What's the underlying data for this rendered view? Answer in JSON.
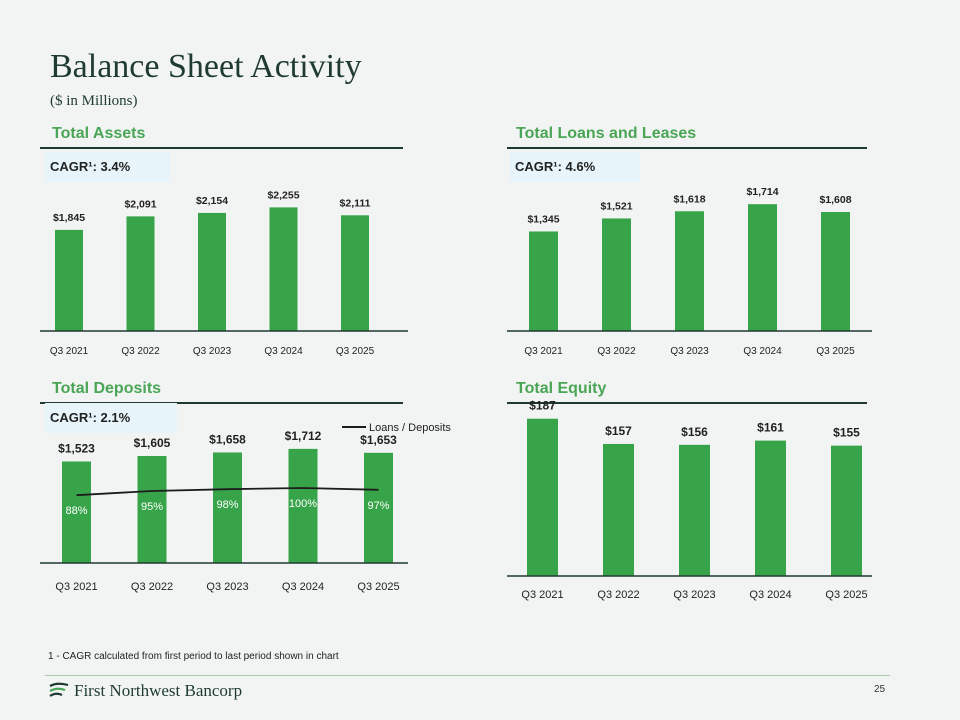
{
  "title": "Balance Sheet Activity",
  "subtitle": "($ in Millions)",
  "colors": {
    "bar": "#38a44a",
    "heading": "#4aa556",
    "dark": "#1f3a33",
    "cagr_bg": "#e7f5fa"
  },
  "chart_data": [
    {
      "id": "assets",
      "type": "bar",
      "title": "Total Assets",
      "cagr": "CAGR¹: 3.4%",
      "categories": [
        "Q3 2021",
        "Q3 2022",
        "Q3 2023",
        "Q3 2024",
        "Q3 2025"
      ],
      "values": [
        1845,
        2091,
        2154,
        2255,
        2111
      ],
      "labels": [
        "$1,845",
        "$2,091",
        "$2,154",
        "$2,255",
        "$2,111"
      ],
      "ylim": [
        0,
        2700
      ]
    },
    {
      "id": "loans",
      "type": "bar",
      "title": "Total Loans and Leases",
      "cagr": "CAGR¹: 4.6%",
      "categories": [
        "Q3 2021",
        "Q3 2022",
        "Q3 2023",
        "Q3 2024",
        "Q3 2025"
      ],
      "values": [
        1345,
        1521,
        1618,
        1714,
        1608
      ],
      "labels": [
        "$1,345",
        "$1,521",
        "$1,618",
        "$1,714",
        "$1,608"
      ],
      "ylim": [
        0,
        2000
      ]
    },
    {
      "id": "deposits",
      "type": "bar",
      "title": "Total Deposits",
      "cagr": "CAGR¹: 2.1%",
      "categories": [
        "Q3 2021",
        "Q3 2022",
        "Q3 2023",
        "Q3 2024",
        "Q3 2025"
      ],
      "values": [
        1523,
        1605,
        1658,
        1712,
        1653
      ],
      "labels": [
        "$1,523",
        "$1,605",
        "$1,658",
        "$1,712",
        "$1,653"
      ],
      "ylim": [
        0,
        2100
      ],
      "line_series": {
        "name": "Loans / Deposits",
        "values": [
          88,
          95,
          98,
          100,
          97
        ],
        "labels": [
          "88%",
          "95%",
          "98%",
          "100%",
          "97%"
        ],
        "ylim": [
          0,
          140
        ]
      }
    },
    {
      "id": "equity",
      "type": "bar",
      "title": "Total Equity",
      "cagr": "",
      "categories": [
        "Q3 2021",
        "Q3 2022",
        "Q3 2023",
        "Q3 2024",
        "Q3 2025"
      ],
      "values": [
        187,
        157,
        156,
        161,
        155
      ],
      "labels": [
        "$187",
        "$157",
        "$156",
        "$161",
        "$155"
      ],
      "ylim": [
        0,
        195
      ]
    }
  ],
  "footnote": "1 - CAGR calculated from first period to last period shown in chart",
  "logo_text": "First Northwest Bancorp",
  "page_number": "25"
}
